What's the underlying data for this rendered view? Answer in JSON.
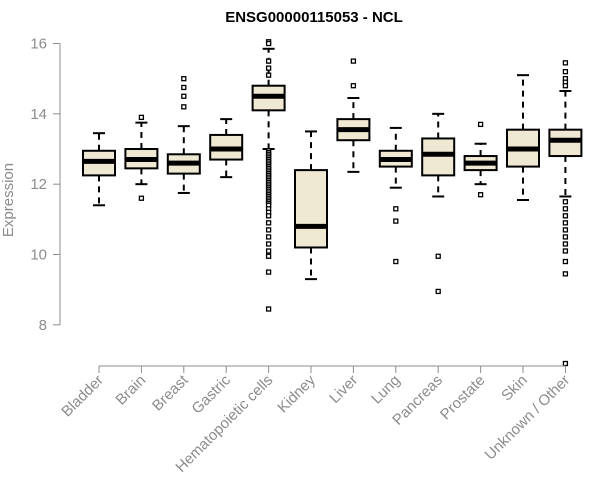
{
  "chart_data": {
    "type": "boxplot",
    "title": "ENSG00000115053 - NCL",
    "xlabel": "",
    "ylabel": "Expression",
    "ylim": [
      7,
      16.1
    ],
    "yticks": [
      8,
      10,
      12,
      14,
      16
    ],
    "grid": false,
    "colors": {
      "box_fill": "#efe8d2",
      "box_stroke": "#000000",
      "axis": "#8c8c8c"
    },
    "categories": [
      "Bladder",
      "Brain",
      "Breast",
      "Gastric",
      "Hematopoietic cells",
      "Kidney",
      "Liver",
      "Lung",
      "Pancreas",
      "Prostate",
      "Skin",
      "Unknown / Other"
    ],
    "series": [
      {
        "category": "Bladder",
        "whisker_low": 11.4,
        "q1": 12.25,
        "median": 12.65,
        "q3": 12.95,
        "whisker_high": 13.45,
        "outliers": []
      },
      {
        "category": "Brain",
        "whisker_low": 12.0,
        "q1": 12.45,
        "median": 12.7,
        "q3": 13.0,
        "whisker_high": 13.75,
        "outliers": [
          11.6,
          13.9
        ]
      },
      {
        "category": "Breast",
        "whisker_low": 11.75,
        "q1": 12.3,
        "median": 12.6,
        "q3": 12.85,
        "whisker_high": 13.65,
        "outliers": [
          14.2,
          14.5,
          14.75,
          15.0
        ]
      },
      {
        "category": "Gastric",
        "whisker_low": 12.2,
        "q1": 12.7,
        "median": 13.0,
        "q3": 13.4,
        "whisker_high": 13.85,
        "outliers": []
      },
      {
        "category": "Hematopoietic cells",
        "whisker_low": 13.0,
        "q1": 14.1,
        "median": 14.5,
        "q3": 14.8,
        "whisker_high": 15.85,
        "outliers": [
          16.05,
          16.0,
          15.5,
          15.3,
          15.1,
          12.95,
          12.9,
          12.85,
          12.8,
          12.75,
          12.7,
          12.65,
          12.6,
          12.55,
          12.5,
          12.45,
          12.4,
          12.35,
          12.3,
          12.25,
          12.2,
          12.15,
          12.1,
          12.05,
          12.0,
          11.95,
          11.9,
          11.85,
          11.8,
          11.75,
          11.7,
          11.65,
          11.6,
          11.55,
          11.5,
          11.45,
          11.4,
          11.3,
          11.2,
          11.1,
          10.9,
          10.7,
          10.5,
          10.3,
          10.1,
          9.95,
          9.5,
          8.45
        ]
      },
      {
        "category": "Kidney",
        "whisker_low": 9.3,
        "q1": 10.2,
        "median": 10.8,
        "q3": 12.4,
        "whisker_high": 13.5,
        "outliers": []
      },
      {
        "category": "Liver",
        "whisker_low": 12.35,
        "q1": 13.25,
        "median": 13.55,
        "q3": 13.85,
        "whisker_high": 14.45,
        "outliers": [
          14.8,
          15.5
        ]
      },
      {
        "category": "Lung",
        "whisker_low": 11.9,
        "q1": 12.5,
        "median": 12.7,
        "q3": 12.95,
        "whisker_high": 13.6,
        "outliers": [
          11.3,
          10.95,
          9.8
        ]
      },
      {
        "category": "Pancreas",
        "whisker_low": 11.65,
        "q1": 12.25,
        "median": 12.85,
        "q3": 13.3,
        "whisker_high": 14.0,
        "outliers": [
          9.95,
          8.95
        ]
      },
      {
        "category": "Prostate",
        "whisker_low": 12.0,
        "q1": 12.4,
        "median": 12.6,
        "q3": 12.8,
        "whisker_high": 13.15,
        "outliers": [
          11.7,
          13.7
        ]
      },
      {
        "category": "Skin",
        "whisker_low": 11.55,
        "q1": 12.5,
        "median": 13.0,
        "q3": 13.55,
        "whisker_high": 15.1,
        "outliers": []
      },
      {
        "category": "Unknown / Other",
        "whisker_low": 11.65,
        "q1": 12.8,
        "median": 13.25,
        "q3": 13.55,
        "whisker_high": 14.65,
        "outliers": [
          15.45,
          15.2,
          15.0,
          14.9,
          14.8,
          11.5,
          11.3,
          11.1,
          10.9,
          10.7,
          10.5,
          10.3,
          10.1,
          9.8,
          9.45,
          6.9
        ]
      }
    ]
  }
}
